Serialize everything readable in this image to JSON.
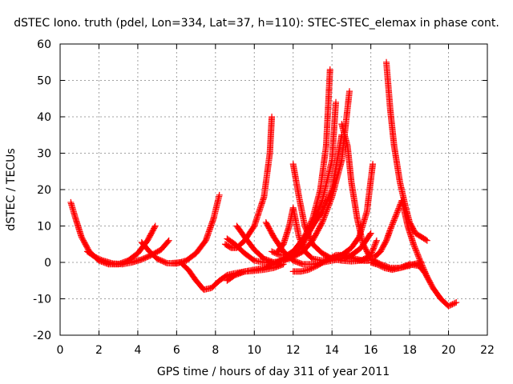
{
  "chart_data": {
    "type": "scatter",
    "title": "dSTEC Iono. truth (pdel, Lon=334, Lat=37, h=110): STEC-STEC_elemax in phase cont.",
    "xlabel": "GPS time / hours of day 311 of year 2011",
    "ylabel": "dSTEC  / TECUs",
    "xlim": [
      0,
      22
    ],
    "ylim": [
      -20,
      60
    ],
    "xticks": [
      "0",
      "2",
      "4",
      "6",
      "8",
      "10",
      "12",
      "14",
      "16",
      "18",
      "20",
      "22"
    ],
    "yticks": [
      "-20",
      "-10",
      "0",
      "10",
      "20",
      "30",
      "40",
      "50",
      "60"
    ],
    "grid": true,
    "marker": "plus",
    "color": "#ff0000",
    "series": [
      {
        "x": [
          0.55,
          0.8,
          1.1,
          1.5,
          2.0,
          2.5,
          3.0,
          3.5,
          4.0,
          4.5,
          4.9
        ],
        "y": [
          16.5,
          12,
          7,
          3,
          0.5,
          -0.5,
          -0.5,
          0.5,
          2.5,
          6,
          10
        ]
      },
      {
        "x": [
          1.4,
          1.8,
          2.2,
          2.7,
          3.2,
          3.7,
          4.2,
          4.7,
          5.2,
          5.6
        ],
        "y": [
          3,
          1.5,
          0.5,
          -0.3,
          -0.5,
          0,
          0.8,
          2,
          3.5,
          6
        ]
      },
      {
        "x": [
          4.2,
          4.6,
          5.0,
          5.5,
          6.0,
          6.5,
          7.0,
          7.5,
          7.9,
          8.2
        ],
        "y": [
          5.5,
          3,
          1,
          -0.2,
          -0.3,
          0.5,
          2.5,
          6,
          12,
          18.5
        ]
      },
      {
        "x": [
          5.8,
          6.2,
          6.6,
          7.0,
          7.4,
          7.8,
          8.2,
          8.6,
          9.0,
          9.5,
          10.0,
          10.5,
          11.0,
          11.5
        ],
        "y": [
          -0.2,
          0,
          -2,
          -5,
          -7.5,
          -7,
          -5,
          -3.5,
          -3,
          -2.5,
          -2.3,
          -2,
          -1.5,
          -0.5
        ]
      },
      {
        "x": [
          8.6,
          9.0,
          9.5,
          10.0,
          10.5,
          11.0,
          11.5,
          12.0,
          12.5,
          13.0,
          13.4,
          13.7,
          13.9
        ],
        "y": [
          -5,
          -3.5,
          -2.5,
          -2,
          -1.5,
          -0.5,
          1,
          3,
          6,
          12,
          20,
          32,
          53
        ]
      },
      {
        "x": [
          8.5,
          8.8,
          9.1,
          9.5,
          10.0,
          10.5,
          10.8,
          10.9
        ],
        "y": [
          5,
          4,
          4,
          6,
          10,
          18,
          30,
          40
        ]
      },
      {
        "x": [
          8.6,
          9.0,
          9.5,
          10.0,
          10.5,
          11.0,
          11.5,
          12.0,
          12.5,
          13.0,
          13.5,
          14.0,
          14.5,
          14.9
        ],
        "y": [
          6.5,
          5,
          2.5,
          0.5,
          0,
          0,
          0.5,
          1.5,
          3,
          6,
          11,
          18,
          28,
          47
        ]
      },
      {
        "x": [
          9.1,
          9.5,
          10.0,
          10.5,
          11.0,
          11.5,
          12.0,
          12.5,
          13.0,
          13.5,
          14.0,
          14.2
        ],
        "y": [
          10,
          7,
          3.5,
          1,
          0,
          0.5,
          2,
          5,
          10,
          17,
          28,
          44
        ]
      },
      {
        "x": [
          10.6,
          11.0,
          11.5,
          12.0,
          12.5,
          13.0,
          13.5,
          14.0,
          14.5,
          15.0,
          15.5,
          16.0
        ],
        "y": [
          11,
          7,
          3,
          0.5,
          -0.5,
          -0.5,
          0,
          0.5,
          1,
          2,
          4,
          8
        ]
      },
      {
        "x": [
          10.9,
          11.3,
          11.7,
          12.0,
          12.3,
          12.6,
          13.0,
          13.5,
          14.0,
          14.5
        ],
        "y": [
          3,
          2,
          2,
          3,
          5,
          7,
          10,
          14,
          20,
          35
        ]
      },
      {
        "x": [
          11.2,
          11.5,
          11.8,
          12.0,
          12.3,
          12.6,
          13.0,
          13.5,
          14.0,
          14.5,
          15.0,
          15.4,
          15.8,
          16.1
        ],
        "y": [
          3,
          5,
          10,
          15,
          7,
          3,
          1,
          0.5,
          1,
          2,
          4,
          7,
          14,
          27
        ]
      },
      {
        "x": [
          12.0,
          12.3,
          12.6,
          13.0,
          13.5,
          14.0,
          14.5,
          15.0,
          15.5,
          16.0,
          16.3
        ],
        "y": [
          27,
          18,
          10,
          5,
          2.5,
          1,
          0.5,
          0.3,
          0.5,
          2,
          6
        ]
      },
      {
        "x": [
          12.0,
          12.4,
          12.8,
          13.2,
          13.7,
          14.2,
          14.7,
          15.2,
          15.6,
          15.9
        ],
        "y": [
          -2.5,
          -2.5,
          -2,
          -1,
          0.5,
          2,
          2,
          1,
          0.5,
          0.5
        ]
      },
      {
        "x": [
          14.5,
          14.8,
          15.0,
          15.3,
          15.6,
          16.0,
          16.5,
          17.0,
          17.5,
          18.0,
          18.5,
          18.8,
          19.2,
          19.6,
          20.0,
          20.4
        ],
        "y": [
          38,
          32,
          22,
          12,
          5,
          1,
          -0.5,
          -1.5,
          -1.5,
          -0.5,
          -1,
          -3,
          -7,
          -10,
          -12,
          -11
        ]
      },
      {
        "x": [
          16.2,
          16.5,
          16.8,
          17.0,
          17.3,
          17.6,
          17.9,
          18.2,
          18.5,
          18.9
        ],
        "y": [
          1.5,
          3,
          6,
          9,
          13,
          17,
          10,
          5,
          1,
          -4
        ]
      },
      {
        "x": [
          16.8,
          17.0,
          17.2,
          17.5,
          17.8,
          18.0,
          18.3,
          18.6,
          18.9
        ],
        "y": [
          55,
          42,
          32,
          22,
          15,
          11,
          8,
          7,
          6
        ]
      },
      {
        "x": [
          16.0,
          16.3,
          16.7,
          17.1,
          17.5,
          17.9,
          18.2,
          18.6
        ],
        "y": [
          0,
          -0.5,
          -1.5,
          -2,
          -1.5,
          -1,
          -0.5,
          0
        ]
      }
    ]
  }
}
